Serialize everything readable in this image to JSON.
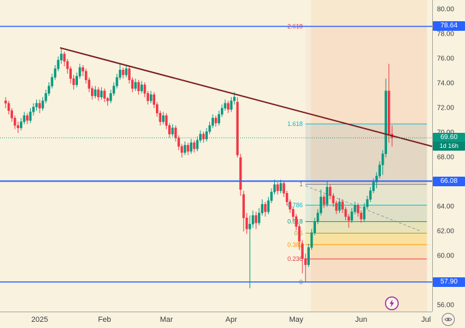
{
  "icons": {
    "lightning": "lightning-bolt-icon",
    "corner_button": "eye-icon"
  },
  "chart_data": {
    "type": "candlestick",
    "title": "",
    "ylim": [
      56,
      80
    ],
    "grid": "off",
    "legend_position": "none",
    "yticks": [
      "80.00",
      "78.00",
      "76.00",
      "74.00",
      "72.00",
      "70.00",
      "68.00",
      "66.00",
      "64.00",
      "62.00",
      "60.00",
      "58.00",
      "56.00"
    ],
    "xticks": [
      {
        "label": "2025",
        "i": 11
      },
      {
        "label": "Feb",
        "i": 32
      },
      {
        "label": "Mar",
        "i": 52
      },
      {
        "label": "Apr",
        "i": 73
      },
      {
        "label": "May",
        "i": 94
      },
      {
        "label": "Jun",
        "i": 115
      },
      {
        "label": "Jul",
        "i": 136
      }
    ],
    "colors": {
      "up": "#089981",
      "down": "#f23645",
      "background": "#f8f2df",
      "axis_text": "#3a3e45",
      "blue_line": "#2962ff",
      "trendline": "#7b1c1c",
      "dashed": "#9598a1"
    },
    "candles": [
      [
        72.6,
        72.9,
        72.0,
        72.4
      ],
      [
        72.4,
        72.6,
        71.5,
        71.8
      ],
      [
        71.8,
        72.0,
        70.9,
        71.2
      ],
      [
        71.2,
        71.4,
        70.3,
        70.6
      ],
      [
        70.6,
        70.9,
        70.0,
        70.4
      ],
      [
        70.4,
        71.2,
        70.2,
        70.9
      ],
      [
        70.9,
        71.7,
        70.7,
        71.4
      ],
      [
        71.4,
        71.6,
        70.7,
        71.0
      ],
      [
        71.0,
        72.0,
        70.8,
        71.7
      ],
      [
        71.7,
        72.4,
        71.4,
        72.1
      ],
      [
        72.1,
        72.7,
        71.8,
        72.4
      ],
      [
        72.4,
        72.7,
        71.6,
        72.0
      ],
      [
        72.0,
        72.9,
        71.8,
        72.6
      ],
      [
        72.6,
        73.5,
        72.4,
        73.2
      ],
      [
        73.2,
        74.1,
        73.0,
        73.8
      ],
      [
        73.8,
        74.8,
        73.6,
        74.5
      ],
      [
        74.5,
        75.5,
        74.3,
        75.2
      ],
      [
        75.2,
        76.2,
        75.0,
        75.9
      ],
      [
        75.9,
        76.9,
        75.6,
        76.4
      ],
      [
        76.4,
        76.6,
        75.4,
        75.8
      ],
      [
        75.8,
        76.0,
        74.8,
        75.2
      ],
      [
        75.2,
        75.4,
        74.0,
        74.4
      ],
      [
        74.4,
        74.7,
        73.5,
        73.9
      ],
      [
        73.9,
        74.9,
        73.7,
        74.6
      ],
      [
        74.6,
        75.6,
        74.4,
        75.3
      ],
      [
        75.3,
        75.5,
        74.6,
        75.0
      ],
      [
        75.0,
        75.2,
        74.0,
        74.3
      ],
      [
        74.3,
        74.5,
        73.3,
        73.6
      ],
      [
        73.6,
        73.8,
        72.7,
        73.0
      ],
      [
        73.0,
        73.8,
        72.8,
        73.5
      ],
      [
        73.5,
        73.7,
        72.6,
        72.9
      ],
      [
        72.9,
        73.7,
        72.7,
        73.4
      ],
      [
        73.4,
        73.6,
        72.5,
        72.8
      ],
      [
        72.8,
        72.9,
        72.2,
        72.6
      ],
      [
        72.6,
        73.5,
        72.4,
        73.2
      ],
      [
        73.2,
        74.1,
        73.0,
        73.8
      ],
      [
        73.8,
        74.8,
        73.6,
        74.5
      ],
      [
        74.5,
        75.6,
        74.3,
        75.1
      ],
      [
        75.1,
        75.3,
        74.4,
        74.7
      ],
      [
        74.7,
        75.5,
        74.5,
        75.2
      ],
      [
        75.2,
        75.4,
        74.0,
        74.3
      ],
      [
        74.3,
        74.5,
        73.3,
        73.6
      ],
      [
        73.6,
        74.4,
        73.4,
        74.1
      ],
      [
        74.1,
        74.3,
        73.1,
        73.4
      ],
      [
        73.4,
        74.2,
        73.2,
        73.9
      ],
      [
        73.9,
        74.1,
        72.9,
        73.2
      ],
      [
        73.2,
        73.4,
        72.3,
        72.6
      ],
      [
        72.6,
        73.4,
        72.4,
        73.1
      ],
      [
        73.1,
        73.3,
        72.0,
        72.3
      ],
      [
        72.3,
        72.5,
        71.3,
        71.6
      ],
      [
        71.6,
        71.8,
        70.6,
        70.9
      ],
      [
        70.9,
        71.7,
        70.7,
        71.4
      ],
      [
        71.4,
        71.6,
        70.3,
        70.6
      ],
      [
        70.6,
        70.8,
        69.6,
        69.9
      ],
      [
        69.9,
        70.7,
        69.7,
        70.4
      ],
      [
        70.4,
        70.6,
        69.3,
        69.6
      ],
      [
        69.6,
        69.8,
        68.6,
        68.9
      ],
      [
        68.9,
        69.1,
        68.0,
        68.4
      ],
      [
        68.4,
        69.3,
        68.2,
        69.0
      ],
      [
        69.0,
        69.2,
        68.2,
        68.5
      ],
      [
        68.5,
        69.5,
        68.3,
        69.2
      ],
      [
        69.2,
        69.4,
        68.4,
        68.7
      ],
      [
        68.7,
        69.7,
        68.5,
        69.4
      ],
      [
        69.4,
        70.2,
        69.2,
        69.9
      ],
      [
        69.9,
        70.1,
        69.2,
        69.5
      ],
      [
        69.5,
        70.4,
        69.3,
        70.1
      ],
      [
        70.1,
        70.9,
        69.9,
        70.6
      ],
      [
        70.6,
        71.5,
        70.4,
        71.2
      ],
      [
        71.2,
        71.4,
        70.5,
        70.8
      ],
      [
        70.8,
        71.8,
        70.6,
        71.5
      ],
      [
        71.5,
        72.3,
        71.3,
        72.0
      ],
      [
        72.0,
        72.7,
        71.8,
        72.4
      ],
      [
        72.4,
        72.6,
        71.6,
        71.9
      ],
      [
        71.9,
        72.9,
        71.7,
        72.6
      ],
      [
        72.6,
        73.3,
        72.3,
        72.9
      ],
      [
        72.5,
        72.9,
        68.0,
        68.2
      ],
      [
        68.0,
        68.3,
        64.9,
        65.4
      ],
      [
        65.0,
        65.3,
        62.0,
        63.1
      ],
      [
        63.1,
        63.5,
        61.8,
        62.2
      ],
      [
        62.2,
        63.3,
        57.4,
        62.6
      ],
      [
        62.6,
        63.7,
        62.3,
        63.3
      ],
      [
        63.3,
        63.6,
        62.2,
        62.7
      ],
      [
        62.7,
        63.9,
        62.5,
        63.5
      ],
      [
        63.5,
        64.6,
        63.3,
        64.2
      ],
      [
        64.2,
        64.4,
        63.2,
        63.6
      ],
      [
        63.6,
        64.8,
        63.4,
        64.5
      ],
      [
        64.5,
        65.5,
        64.3,
        65.2
      ],
      [
        65.2,
        66.2,
        65.0,
        65.8
      ],
      [
        65.8,
        66.0,
        65.0,
        65.3
      ],
      [
        65.3,
        66.2,
        65.1,
        65.9
      ],
      [
        65.9,
        66.1,
        64.8,
        65.1
      ],
      [
        65.1,
        65.3,
        64.1,
        64.4
      ],
      [
        64.4,
        64.6,
        63.5,
        63.8
      ],
      [
        63.8,
        64.0,
        62.9,
        63.2
      ],
      [
        63.2,
        63.4,
        62.1,
        62.4
      ],
      [
        62.4,
        62.6,
        60.5,
        61.2
      ],
      [
        61.0,
        61.3,
        58.6,
        59.8
      ],
      [
        59.8,
        60.2,
        57.9,
        59.3
      ],
      [
        59.3,
        61.0,
        59.1,
        60.7
      ],
      [
        60.7,
        62.2,
        60.5,
        61.9
      ],
      [
        61.9,
        63.1,
        61.7,
        62.8
      ],
      [
        62.8,
        63.8,
        62.6,
        63.5
      ],
      [
        63.5,
        65.4,
        63.3,
        64.8
      ],
      [
        64.8,
        65.0,
        63.9,
        64.2
      ],
      [
        64.2,
        66.1,
        64.0,
        65.6
      ],
      [
        65.6,
        65.8,
        64.6,
        64.9
      ],
      [
        64.9,
        65.1,
        64.0,
        64.3
      ],
      [
        64.3,
        64.5,
        63.4,
        63.7
      ],
      [
        63.7,
        64.7,
        63.5,
        64.4
      ],
      [
        64.4,
        64.6,
        63.5,
        63.8
      ],
      [
        63.8,
        64.0,
        62.9,
        63.2
      ],
      [
        63.2,
        63.4,
        62.3,
        62.9
      ],
      [
        62.9,
        63.9,
        62.7,
        63.6
      ],
      [
        63.6,
        64.4,
        63.4,
        64.1
      ],
      [
        64.1,
        64.3,
        63.2,
        63.5
      ],
      [
        63.5,
        63.7,
        62.7,
        63.0
      ],
      [
        63.0,
        64.3,
        62.8,
        64.0
      ],
      [
        64.0,
        64.9,
        63.8,
        64.6
      ],
      [
        64.6,
        65.6,
        64.4,
        65.3
      ],
      [
        65.3,
        66.3,
        65.1,
        66.0
      ],
      [
        66.0,
        66.8,
        65.5,
        66.5
      ],
      [
        66.5,
        67.7,
        66.3,
        67.4
      ],
      [
        67.4,
        68.6,
        66.6,
        68.3
      ],
      [
        68.3,
        74.4,
        68.0,
        73.4
      ],
      [
        73.4,
        75.6,
        69.2,
        69.9
      ],
      [
        69.9,
        70.6,
        68.9,
        69.6
      ]
    ],
    "hlines": [
      {
        "label": "78.64",
        "price": 78.64,
        "color": "#2962ff",
        "width": 1.5,
        "badge": true
      },
      {
        "label": "66.08",
        "price": 66.08,
        "color": "#2962ff",
        "width": 2,
        "badge": true
      },
      {
        "label": "57.90",
        "price": 57.9,
        "color": "#2962ff",
        "width": 1.5,
        "badge": true
      }
    ],
    "price_badge": {
      "label": "69.60",
      "countdown": "1d 16h",
      "price": 69.6,
      "color": "#089981"
    },
    "highlight": {
      "i1": 98.8,
      "i2": 136.3,
      "color": "rgba(255,128,32,0.09)"
    },
    "fib": {
      "i1": 97,
      "i2": 136.3,
      "levels": [
        {
          "label": "0",
          "price": 57.9,
          "color": "#787b86"
        },
        {
          "label": "0.236",
          "price": 59.77,
          "color": "#f23645"
        },
        {
          "label": "0.382",
          "price": 60.93,
          "color": "#ff9800"
        },
        {
          "label": "0.5",
          "price": 61.86,
          "color": "#a6a62a"
        },
        {
          "label": "0.618",
          "price": 62.8,
          "color": "#089981"
        },
        {
          "label": "0.786",
          "price": 64.13,
          "color": "#00bcd4"
        },
        {
          "label": "1",
          "price": 65.82,
          "color": "#787b86"
        },
        {
          "label": "1.618",
          "price": 70.72,
          "color": "#00bcd4"
        },
        {
          "label": "2.618",
          "price": 78.64,
          "color": "#f23645"
        }
      ],
      "zones": [
        {
          "p1": 57.9,
          "p2": 59.77,
          "color": "rgba(242,54,69,0.06)"
        },
        {
          "p1": 59.77,
          "p2": 60.93,
          "color": "rgba(255,152,0,0.10)"
        },
        {
          "p1": 60.93,
          "p2": 61.86,
          "color": "rgba(255,200,0,0.22)"
        },
        {
          "p1": 61.86,
          "p2": 62.8,
          "color": "rgba(139,195,74,0.14)"
        },
        {
          "p1": 62.8,
          "p2": 64.13,
          "color": "rgba(0,150,136,0.10)"
        },
        {
          "p1": 64.13,
          "p2": 65.82,
          "color": "rgba(0,188,212,0.07)"
        },
        {
          "p1": 65.82,
          "p2": 70.72,
          "color": "rgba(120,123,134,0.16)"
        },
        {
          "p1": 70.72,
          "p2": 78.64,
          "color": "rgba(242,54,69,0.04)"
        }
      ]
    },
    "trendline": {
      "i1": 17.6,
      "p1": 76.9,
      "i2": 138,
      "p2": 68.9
    },
    "dashed_trendline": {
      "i1": 97,
      "p1": 65.7,
      "i2": 134.5,
      "p2": 62.0
    }
  }
}
